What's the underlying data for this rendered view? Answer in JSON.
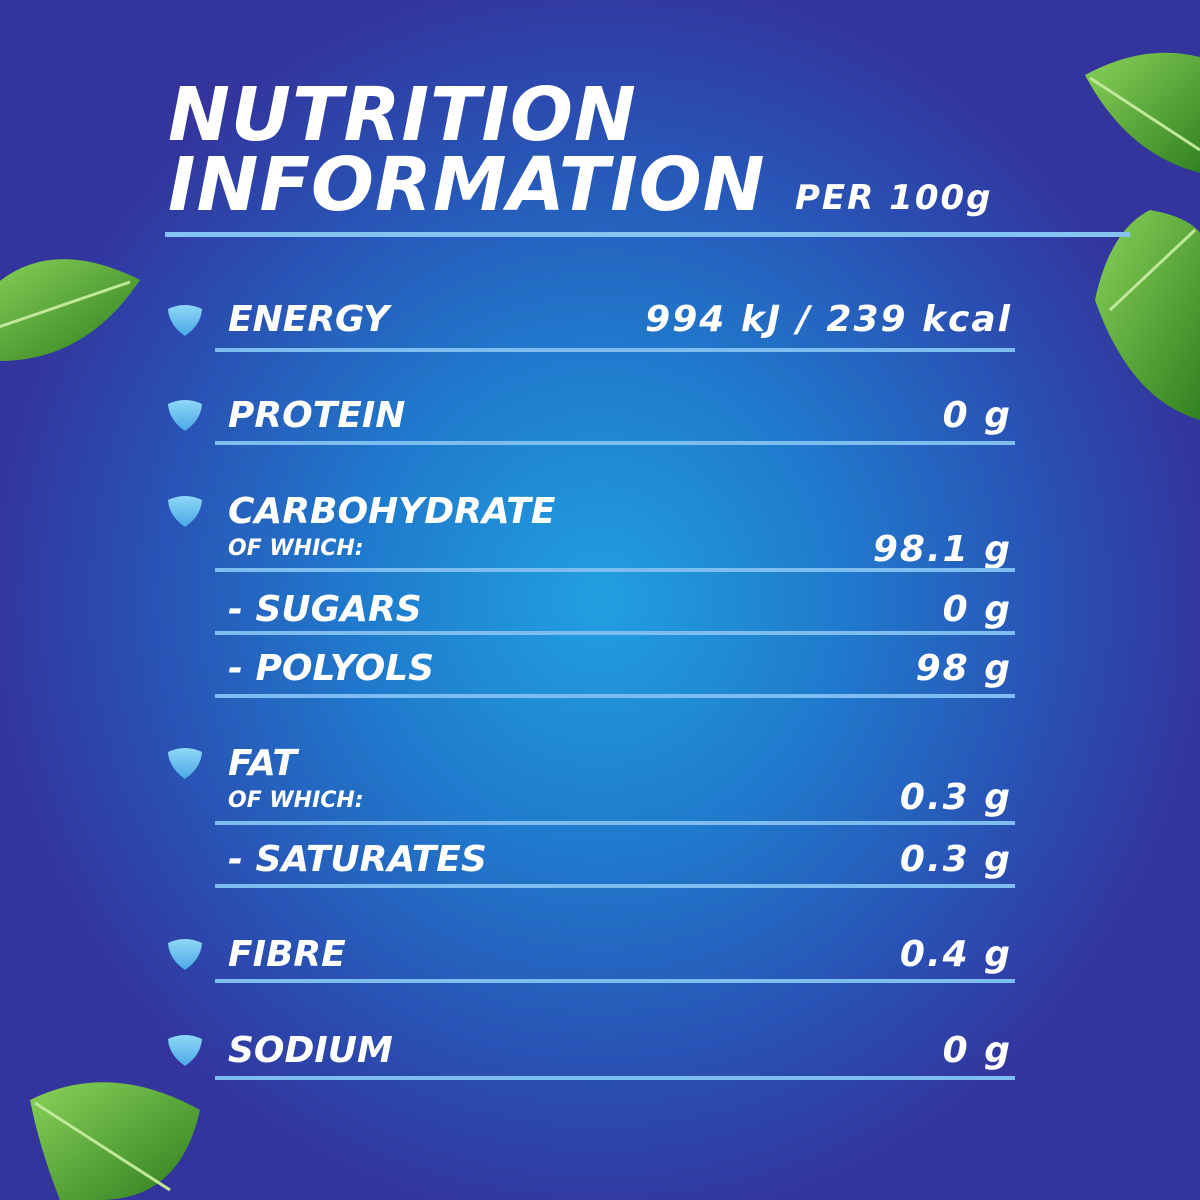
{
  "header": {
    "title_line1": "NUTRITION",
    "title_line2": "INFORMATION",
    "per": "PER 100g"
  },
  "rows": [
    {
      "label": "ENERGY",
      "value": "994 kJ / 239 kcal",
      "icon": "shield-icon"
    },
    {
      "label": "PROTEIN",
      "value": "0 g",
      "icon": "shield-icon"
    },
    {
      "label": "CARBOHYDRATE",
      "sub": "OF WHICH:",
      "value": "98.1 g",
      "icon": "shield-icon"
    },
    {
      "label": "- SUGARS",
      "value": "0 g"
    },
    {
      "label": "- POLYOLS",
      "value": "98 g"
    },
    {
      "label": "FAT",
      "sub": "OF WHICH:",
      "value": "0.3 g",
      "icon": "shield-icon"
    },
    {
      "label": "- SATURATES",
      "value": "0.3 g"
    },
    {
      "label": "FIBRE",
      "value": "0.4 g",
      "icon": "shield-icon"
    },
    {
      "label": "SODIUM",
      "value": "0 g",
      "icon": "shield-icon"
    }
  ],
  "colors": {
    "accent_line": "#7dbdf0",
    "icon": "#6cc4f0",
    "leaf": "#3f9a2a"
  }
}
